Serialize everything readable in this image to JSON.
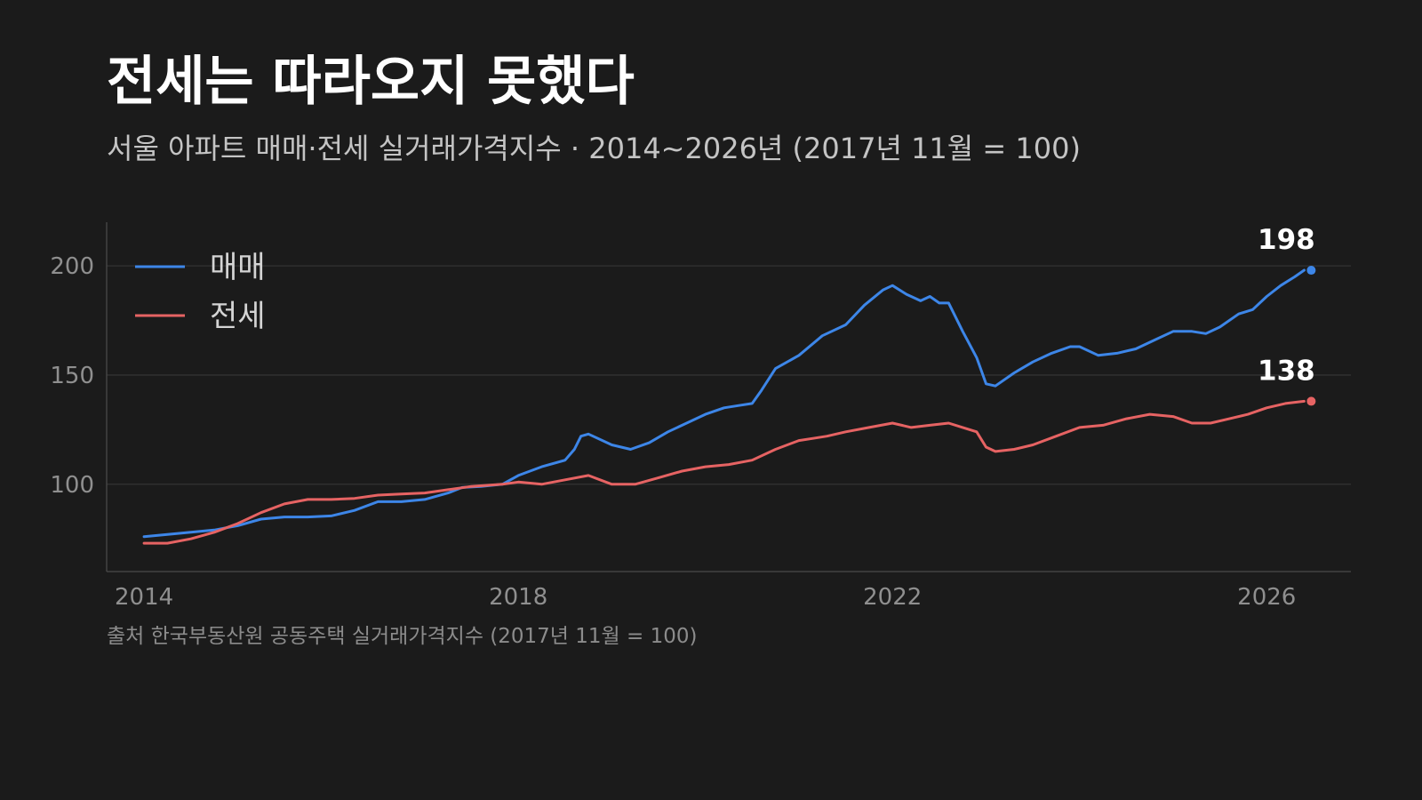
{
  "title": "전세는 따라오지 못했다",
  "subtitle": "서울 아파트 매매·전세 실거래가격지수 · 2014~2026년 (2017년 11월 = 100)",
  "source": "출처 한국부동산원 공동주택 실거래가격지수 (2017년 11월 = 100)",
  "colors": {
    "background": "#1b1b1b",
    "sale": "#3d86e8",
    "jeonse": "#e66363",
    "grid": "#333333",
    "axis": "#4a4a4a"
  },
  "chart_data": {
    "type": "line",
    "x_type": "year",
    "xlim": [
      2013.6,
      2026.9
    ],
    "ylim": [
      60,
      220
    ],
    "x_ticks": [
      2014,
      2018,
      2022,
      2026
    ],
    "x_tick_labels": [
      "2014",
      "2018",
      "2022",
      "2026"
    ],
    "y_ticks": [
      100,
      150,
      200
    ],
    "y_tick_labels": [
      "100",
      "150",
      "200"
    ],
    "grid": "horizontal",
    "legend_position": "top-left",
    "series": [
      {
        "name": "매매",
        "color": "#3d86e8",
        "end_label": "198",
        "points": [
          [
            2014.0,
            76
          ],
          [
            2014.25,
            77
          ],
          [
            2014.5,
            78
          ],
          [
            2014.75,
            79
          ],
          [
            2015.0,
            81
          ],
          [
            2015.25,
            84
          ],
          [
            2015.5,
            85
          ],
          [
            2015.75,
            85
          ],
          [
            2016.0,
            85.5
          ],
          [
            2016.25,
            88
          ],
          [
            2016.5,
            92
          ],
          [
            2016.75,
            92
          ],
          [
            2017.0,
            93
          ],
          [
            2017.25,
            96
          ],
          [
            2017.4,
            98.5
          ],
          [
            2017.6,
            99
          ],
          [
            2017.83,
            100
          ],
          [
            2018.0,
            104
          ],
          [
            2018.25,
            108
          ],
          [
            2018.5,
            111
          ],
          [
            2018.6,
            116
          ],
          [
            2018.67,
            122
          ],
          [
            2018.75,
            123
          ],
          [
            2019.0,
            118
          ],
          [
            2019.2,
            116
          ],
          [
            2019.4,
            119
          ],
          [
            2019.6,
            124
          ],
          [
            2019.8,
            128
          ],
          [
            2020.0,
            132
          ],
          [
            2020.2,
            135
          ],
          [
            2020.35,
            136
          ],
          [
            2020.5,
            137
          ],
          [
            2020.6,
            143
          ],
          [
            2020.75,
            153
          ],
          [
            2021.0,
            159
          ],
          [
            2021.25,
            168
          ],
          [
            2021.5,
            173
          ],
          [
            2021.7,
            182
          ],
          [
            2021.9,
            189
          ],
          [
            2022.0,
            191
          ],
          [
            2022.15,
            187
          ],
          [
            2022.3,
            184
          ],
          [
            2022.4,
            186
          ],
          [
            2022.5,
            183
          ],
          [
            2022.6,
            183
          ],
          [
            2022.75,
            170
          ],
          [
            2022.9,
            158
          ],
          [
            2023.0,
            146
          ],
          [
            2023.1,
            145
          ],
          [
            2023.3,
            151
          ],
          [
            2023.5,
            156
          ],
          [
            2023.7,
            160
          ],
          [
            2023.9,
            163
          ],
          [
            2024.0,
            163
          ],
          [
            2024.2,
            159
          ],
          [
            2024.4,
            160
          ],
          [
            2024.6,
            162
          ],
          [
            2024.8,
            166
          ],
          [
            2025.0,
            170
          ],
          [
            2025.2,
            170
          ],
          [
            2025.35,
            169
          ],
          [
            2025.5,
            172
          ],
          [
            2025.7,
            178
          ],
          [
            2025.85,
            180
          ],
          [
            2026.0,
            186
          ],
          [
            2026.15,
            191
          ],
          [
            2026.3,
            195
          ],
          [
            2026.4,
            198
          ]
        ]
      },
      {
        "name": "전세",
        "color": "#e66363",
        "end_label": "138",
        "points": [
          [
            2014.0,
            73
          ],
          [
            2014.25,
            73
          ],
          [
            2014.5,
            75
          ],
          [
            2014.75,
            78
          ],
          [
            2015.0,
            82
          ],
          [
            2015.25,
            87
          ],
          [
            2015.5,
            91
          ],
          [
            2015.75,
            93
          ],
          [
            2016.0,
            93
          ],
          [
            2016.25,
            93.5
          ],
          [
            2016.5,
            95
          ],
          [
            2016.75,
            95.5
          ],
          [
            2017.0,
            96
          ],
          [
            2017.25,
            97.5
          ],
          [
            2017.5,
            99
          ],
          [
            2017.83,
            100
          ],
          [
            2018.0,
            101
          ],
          [
            2018.25,
            100
          ],
          [
            2018.5,
            102
          ],
          [
            2018.75,
            104
          ],
          [
            2019.0,
            100
          ],
          [
            2019.25,
            100
          ],
          [
            2019.5,
            103
          ],
          [
            2019.75,
            106
          ],
          [
            2020.0,
            108
          ],
          [
            2020.25,
            109
          ],
          [
            2020.5,
            111
          ],
          [
            2020.75,
            116
          ],
          [
            2021.0,
            120
          ],
          [
            2021.15,
            121
          ],
          [
            2021.3,
            122
          ],
          [
            2021.5,
            124
          ],
          [
            2021.75,
            126
          ],
          [
            2022.0,
            128
          ],
          [
            2022.2,
            126
          ],
          [
            2022.4,
            127
          ],
          [
            2022.6,
            128
          ],
          [
            2022.75,
            126
          ],
          [
            2022.9,
            124
          ],
          [
            2023.0,
            117
          ],
          [
            2023.1,
            115
          ],
          [
            2023.3,
            116
          ],
          [
            2023.5,
            118
          ],
          [
            2023.75,
            122
          ],
          [
            2024.0,
            126
          ],
          [
            2024.25,
            127
          ],
          [
            2024.5,
            130
          ],
          [
            2024.75,
            132
          ],
          [
            2025.0,
            131
          ],
          [
            2025.2,
            128
          ],
          [
            2025.4,
            128
          ],
          [
            2025.6,
            130
          ],
          [
            2025.8,
            132
          ],
          [
            2026.0,
            135
          ],
          [
            2026.2,
            137
          ],
          [
            2026.4,
            138
          ]
        ]
      }
    ]
  }
}
